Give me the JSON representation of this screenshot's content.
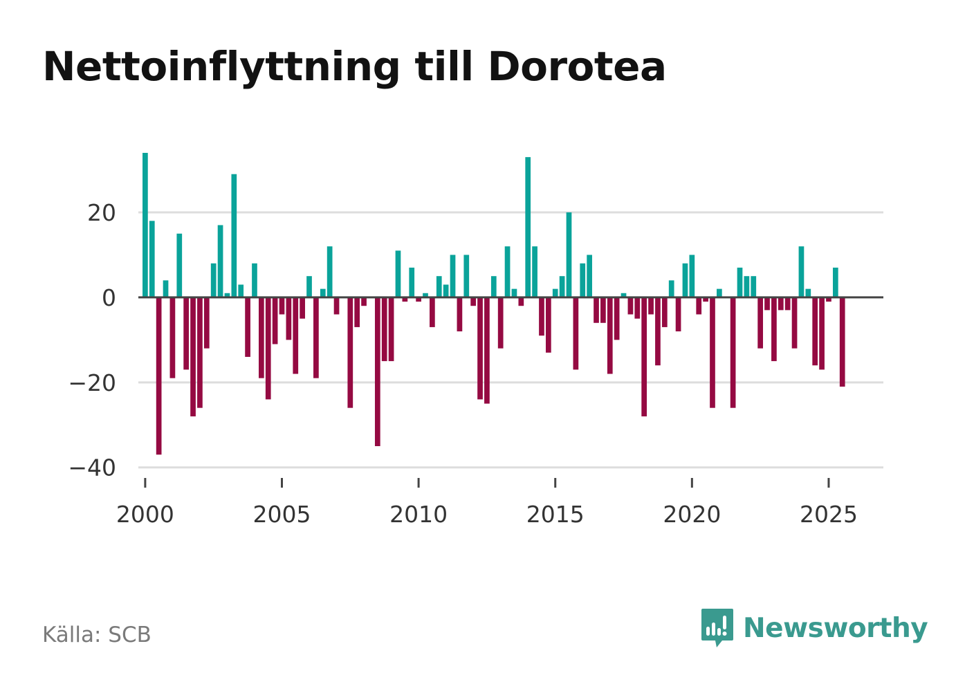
{
  "title": "Nettoinflyttning till Dorotea",
  "source": "Källa: SCB",
  "brand": "Newsworthy",
  "colors": {
    "positive": "#0aa39a",
    "negative": "#950a42",
    "grid": "#dddddd",
    "zero_line": "#444444",
    "brand": "#3a9a8f"
  },
  "icons": [
    "newsworthy-logo-icon"
  ],
  "chart_data": {
    "type": "bar",
    "title": "Nettoinflyttning till Dorotea",
    "xlabel": "",
    "ylabel": "",
    "x_start": 2000,
    "x_step": 0.25,
    "xlim": [
      1999.75,
      2027.0
    ],
    "ylim": [
      -42,
      34
    ],
    "yticks": [
      20,
      0,
      -20,
      -40
    ],
    "ytick_labels": [
      "20",
      "0",
      "−20",
      "−40"
    ],
    "xticks": [
      2000,
      2005,
      2010,
      2015,
      2020,
      2025
    ],
    "xtick_labels": [
      "2000",
      "2005",
      "2010",
      "2015",
      "2020",
      "2025"
    ],
    "grid": true,
    "values": [
      34,
      18,
      -37,
      4,
      -19,
      15,
      -17,
      -28,
      -26,
      -12,
      8,
      17,
      1,
      29,
      3,
      -14,
      8,
      -19,
      -24,
      -11,
      -4,
      -10,
      -18,
      -5,
      5,
      -19,
      2,
      12,
      -4,
      0,
      -26,
      -7,
      -2,
      0,
      -35,
      -15,
      -15,
      11,
      -1,
      7,
      -1,
      1,
      -7,
      5,
      3,
      10,
      -8,
      10,
      -2,
      -24,
      -25,
      5,
      -12,
      12,
      2,
      -2,
      33,
      12,
      -9,
      -13,
      2,
      5,
      20,
      -17,
      8,
      10,
      -6,
      -6,
      -18,
      -10,
      1,
      -4,
      -5,
      -28,
      -4,
      -16,
      -7,
      4,
      -8,
      8,
      10,
      -4,
      -1,
      -26,
      2,
      0,
      -26,
      7,
      5,
      5,
      -12,
      -3,
      -15,
      -3,
      -3,
      -12,
      12,
      2,
      -16,
      -17,
      -1,
      7,
      -21
    ]
  }
}
